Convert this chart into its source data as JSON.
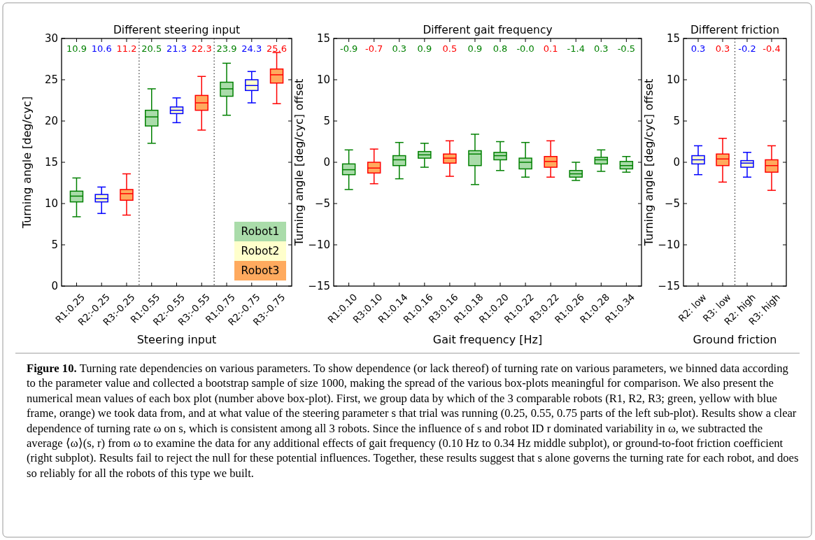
{
  "chart_data": [
    {
      "type": "box",
      "title": "Different steering input",
      "xlabel": "Steering input",
      "ylabel": "Turning angle [deg/cyc]",
      "categories": [
        "R1:0.25",
        "R2:-0.25",
        "R3:-0.25",
        "R1:0.55",
        "R2:-0.55",
        "R3:-0.55",
        "R1:0.75",
        "R2:-0.75",
        "R3:-0.75"
      ],
      "ylim": [
        0,
        30
      ],
      "yticks": [
        0,
        5,
        10,
        15,
        20,
        25,
        30
      ],
      "legend": "bottom right",
      "annotations": [
        "Figure 10.",
        "Turning rate dependencies on various parameters. To show dependence (or lack thereof) of turning rate on various parameters, we binned data according to the parameter value and collected a bootstrap sample of size 1000, making the spread of the various box-plots meaningful for comparison. We also present the numerical mean values of each box plot (number above box-plot). First, we group data by which of the 3 comparable robots (R1, R2, R3; green, yellow with blue frame, orange) we took data from, and at what value of the steering parameter s that trial was running (0.25, 0.55, 0.75 parts of the left sub-plot). Results show a clear dependence of turning rate ω on s, which is consistent among all 3 robots. Since the influence of s and robot ID r dominated variability in ω, we subtracted the average ⟨ω⟩(s, r) from ω to examine the data for any additional effects of gait frequency (0.10 Hz to 0.34 Hz middle subplot), or ground-to-foot friction coefficient (right subplot). Results fail to reject the null for these potential influences. Together, these results suggest that s alone governs the turning rate for each robot, and does so reliably for all the robots of this type we built.",
        "10.9",
        "10.6",
        "11.2",
        "20.5",
        "21.3",
        "22.3",
        "23.9",
        "24.3",
        "25.6"
      ],
      "series": [
        {
          "name": "Robot1",
          "color": "#aadcaa",
          "colors": [
            "#008000",
            null,
            null,
            "#008000",
            null,
            null,
            "#008000",
            null,
            null
          ],
          "boxes": [
            {
              "low": 8.4,
              "q1": 10.2,
              "median": 10.9,
              "q3": 11.5,
              "high": 13.1
            },
            null,
            null,
            {
              "low": 17.3,
              "q1": 19.4,
              "median": 20.5,
              "q3": 21.3,
              "high": 23.9
            },
            null,
            null,
            {
              "low": 20.7,
              "q1": 23.0,
              "median": 23.9,
              "q3": 24.7,
              "high": 27.0
            },
            null,
            null
          ]
        },
        {
          "name": "Robot2",
          "color": "#ffffcc",
          "colors": [
            null,
            "#0000ff",
            null,
            null,
            "#0000ff",
            null,
            null,
            "#0000ff",
            null
          ],
          "boxes": [
            null,
            {
              "low": 8.8,
              "q1": 10.2,
              "median": 10.6,
              "q3": 11.1,
              "high": 12.0
            },
            null,
            null,
            {
              "low": 19.8,
              "q1": 20.9,
              "median": 21.3,
              "q3": 21.7,
              "high": 22.8
            },
            null,
            null,
            {
              "low": 22.2,
              "q1": 23.7,
              "median": 24.3,
              "q3": 25.0,
              "high": 26.0
            },
            null
          ]
        },
        {
          "name": "Robot3",
          "color": "#ffaa5e",
          "colors": [
            null,
            null,
            "#ff0000",
            null,
            null,
            "#ff0000",
            null,
            null,
            "#ff0000"
          ],
          "boxes": [
            null,
            null,
            {
              "low": 8.6,
              "q1": 10.4,
              "median": 11.2,
              "q3": 11.7,
              "high": 13.6
            },
            null,
            null,
            {
              "low": 18.9,
              "q1": 21.3,
              "median": 22.2,
              "q3": 23.1,
              "high": 25.4
            },
            null,
            null,
            {
              "low": 22.1,
              "q1": 24.6,
              "median": 25.6,
              "q3": 26.3,
              "high": 28.3
            }
          ]
        }
      ]
    },
    {
      "type": "box",
      "title": "Different gait frequency",
      "xlabel": "Gait frequency [Hz]",
      "ylabel": "Turning angle [deg/cyc] offset",
      "categories": [
        "R1:0.10",
        "R3:0.10",
        "R1:0.14",
        "R1:0.16",
        "R3:0.16",
        "R1:0.18",
        "R1:0.20",
        "R1:0.22",
        "R3:0.22",
        "R1:0.26",
        "R1:0.28",
        "R1:0.34"
      ],
      "ylim": [
        -15,
        15
      ],
      "yticks": [
        -15,
        -10,
        -5,
        0,
        5,
        10,
        15
      ],
      "annotations": [
        "-0.9",
        "-0.7",
        "0.3",
        "0.9",
        "0.5",
        "0.9",
        "0.8",
        "-0.0",
        "0.1",
        "-1.4",
        "0.3",
        "-0.5"
      ],
      "series": [
        {
          "color": "#aadcaa",
          "colors": [
            "#008000",
            null,
            "#008000",
            "#008000",
            null,
            "#008000",
            "#008000",
            "#008000",
            null,
            "#008000",
            "#008000",
            "#008000"
          ],
          "boxes": [
            {
              "low": -3.3,
              "q1": -1.5,
              "median": -0.9,
              "q3": -0.2,
              "high": 1.5
            },
            null,
            {
              "low": -2.0,
              "q1": -0.4,
              "median": 0.3,
              "q3": 0.8,
              "high": 2.4
            },
            {
              "low": -0.6,
              "q1": 0.5,
              "median": 0.9,
              "q3": 1.3,
              "high": 2.3
            },
            null,
            {
              "low": -2.7,
              "q1": -0.4,
              "median": 1.0,
              "q3": 1.4,
              "high": 3.4
            },
            {
              "low": -1.0,
              "q1": 0.3,
              "median": 0.8,
              "q3": 1.2,
              "high": 2.5
            },
            {
              "low": -1.8,
              "q1": -0.8,
              "median": 0.0,
              "q3": 0.5,
              "high": 2.4
            },
            null,
            {
              "low": -2.2,
              "q1": -1.8,
              "median": -1.4,
              "q3": -1.0,
              "high": 0.0
            },
            {
              "low": -1.1,
              "q1": -0.2,
              "median": 0.3,
              "q3": 0.6,
              "high": 1.5
            },
            {
              "low": -1.2,
              "q1": -0.8,
              "median": -0.4,
              "q3": 0.1,
              "high": 0.7
            }
          ]
        },
        {
          "color": "#ffaa5e",
          "colors": [
            null,
            "#ff0000",
            null,
            null,
            "#ff0000",
            null,
            null,
            null,
            "#ff0000",
            null,
            null,
            null
          ],
          "boxes": [
            null,
            {
              "low": -2.6,
              "q1": -1.3,
              "median": -0.7,
              "q3": 0.0,
              "high": 1.6
            },
            null,
            null,
            {
              "low": -1.7,
              "q1": -0.1,
              "median": 0.5,
              "q3": 1.0,
              "high": 2.6
            },
            null,
            null,
            null,
            {
              "low": -1.8,
              "q1": -0.6,
              "median": 0.1,
              "q3": 0.7,
              "high": 2.6
            },
            null,
            null,
            null
          ]
        }
      ]
    },
    {
      "type": "box",
      "title": "Different friction",
      "xlabel": "Ground friction",
      "ylabel": "Turning angle [deg/cyc] offset",
      "categories": [
        "R2: low",
        "R3: low",
        "R2: high",
        "R3: high"
      ],
      "ylim": [
        -15,
        15
      ],
      "yticks": [
        -15,
        -10,
        -5,
        0,
        5,
        10,
        15
      ],
      "annotations": [
        "0.3",
        "0.3",
        "-0.2",
        "-0.4"
      ],
      "series": [
        {
          "color": "#ffffcc",
          "colors": [
            "#0000ff",
            null,
            "#0000ff",
            null
          ],
          "boxes": [
            {
              "low": -1.5,
              "q1": -0.2,
              "median": 0.3,
              "q3": 0.8,
              "high": 2.0
            },
            null,
            {
              "low": -1.8,
              "q1": -0.6,
              "median": -0.1,
              "q3": 0.2,
              "high": 1.2
            },
            null
          ]
        },
        {
          "color": "#ffaa5e",
          "colors": [
            null,
            "#ff0000",
            null,
            "#ff0000"
          ],
          "boxes": [
            null,
            {
              "low": -2.4,
              "q1": -0.4,
              "median": 0.4,
              "q3": 1.0,
              "high": 2.9
            },
            null,
            {
              "low": -3.4,
              "q1": -1.2,
              "median": -0.4,
              "q3": 0.3,
              "high": 2.0
            }
          ]
        }
      ]
    }
  ]
}
